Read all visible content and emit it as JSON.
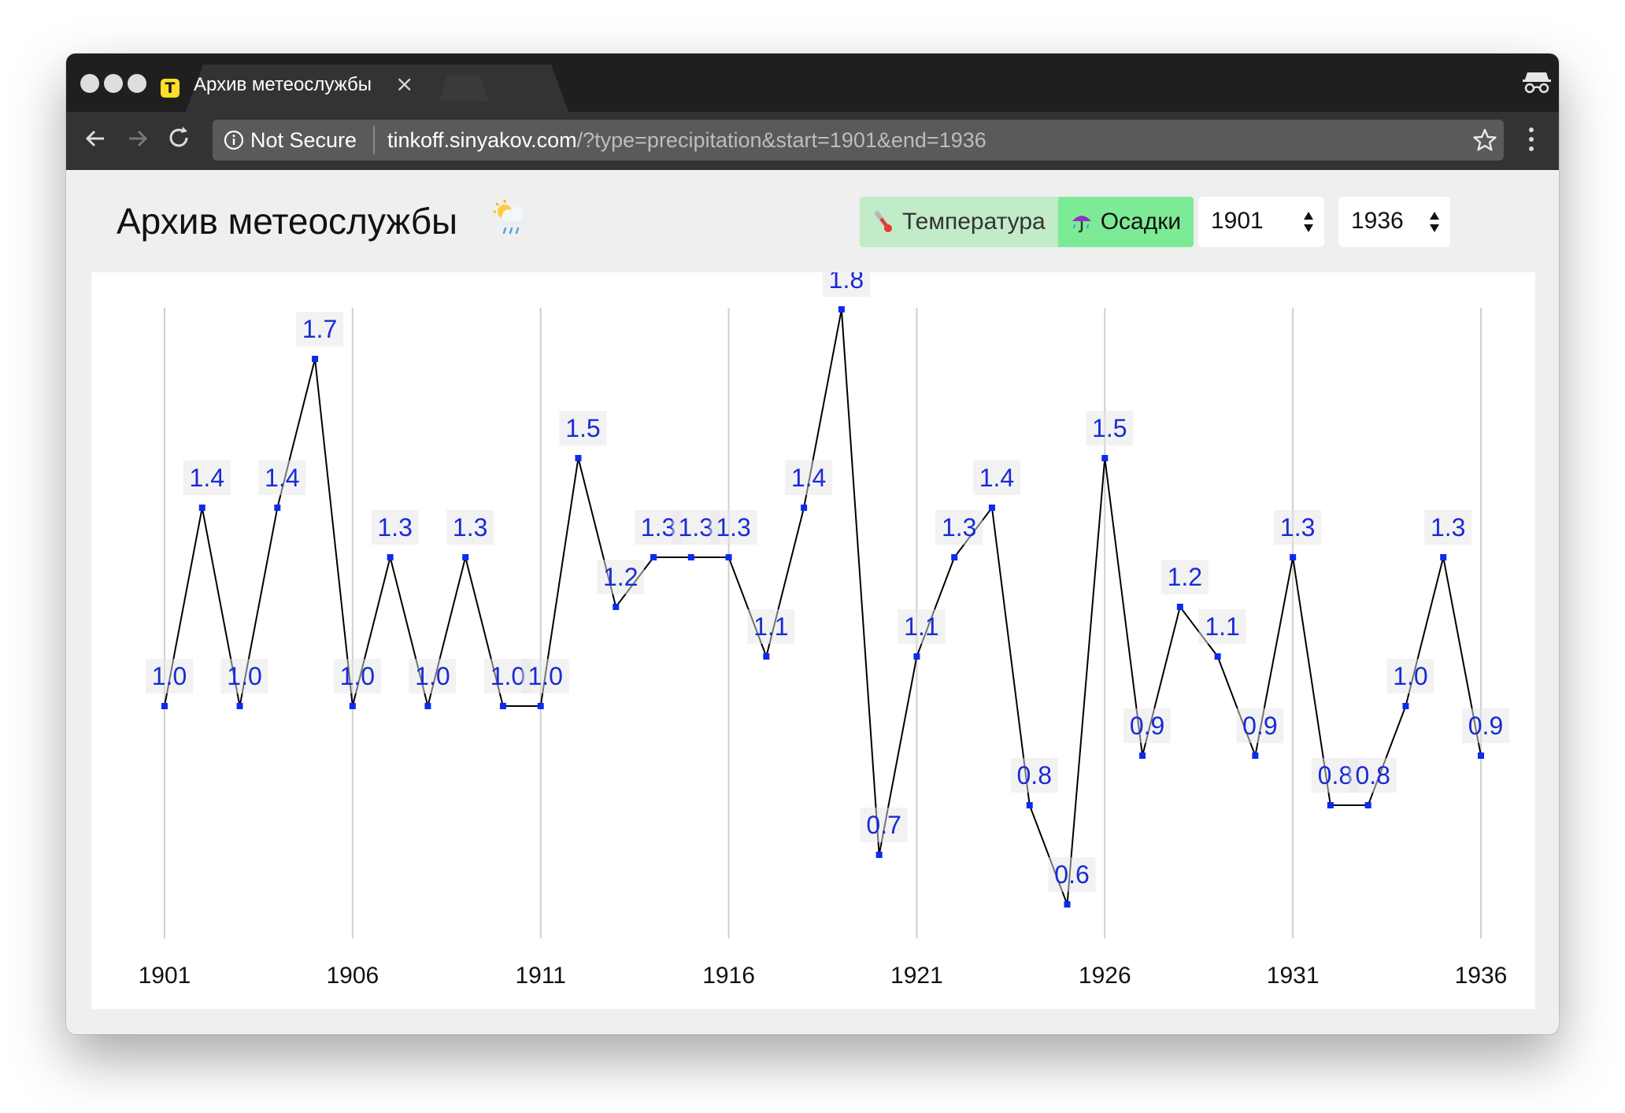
{
  "browser": {
    "tab_title": "Архив метеослужбы",
    "not_secure_label": "Not Secure",
    "url_host": "tinkoff.sinyakov.com",
    "url_path": "/?type=precipitation&start=1901&end=1936"
  },
  "header": {
    "title": "Архив метеослужбы",
    "title_emoji": "cloud-rain-sun-icon",
    "toggles": [
      {
        "label": "Температура",
        "icon": "thermometer-icon",
        "active": false
      },
      {
        "label": "Осадки",
        "icon": "umbrella-icon",
        "active": true
      }
    ],
    "start_year": "1901",
    "end_year": "1936"
  },
  "colors": {
    "active_toggle": "#7dea95",
    "inactive_toggle": "#c2ebc8",
    "point": "#0b2bf0",
    "label": "#1a2bd6",
    "line": "#000000"
  },
  "chart_data": {
    "type": "line",
    "x": [
      1901,
      1902,
      1903,
      1904,
      1905,
      1906,
      1907,
      1908,
      1909,
      1910,
      1911,
      1912,
      1913,
      1914,
      1915,
      1916,
      1917,
      1918,
      1919,
      1920,
      1921,
      1922,
      1923,
      1924,
      1925,
      1926,
      1927,
      1928,
      1929,
      1930,
      1931,
      1932,
      1933,
      1934,
      1935,
      1936
    ],
    "values": [
      1.0,
      1.4,
      1.0,
      1.4,
      1.7,
      1.0,
      1.3,
      1.0,
      1.3,
      1.0,
      1.0,
      1.5,
      1.2,
      1.3,
      1.3,
      1.3,
      1.1,
      1.4,
      1.8,
      0.7,
      1.1,
      1.3,
      1.4,
      0.8,
      0.6,
      1.5,
      0.9,
      1.2,
      1.1,
      0.9,
      1.3,
      0.8,
      0.8,
      1.0,
      1.3,
      0.9
    ],
    "data_labels": [
      "1.0",
      "1.4",
      "1.0",
      "1.4",
      "1.7",
      "1.0",
      "1.3",
      "1.0",
      "1.3",
      "1.0",
      "1.0",
      "1.5",
      "1.2",
      "1.3",
      "1.3",
      "1.3",
      "1.1",
      "1.4",
      "1.8",
      "0.7",
      "1.1",
      "1.3",
      "1.4",
      "0.8",
      "0.6",
      "1.5",
      "0.9",
      "1.2",
      "1.1",
      "0.9",
      "1.3",
      "0.8",
      "0.8",
      "1.0",
      "1.3",
      "0.9"
    ],
    "x_ticks": [
      "1901",
      "1906",
      "1911",
      "1916",
      "1921",
      "1926",
      "1931",
      "1936"
    ],
    "xlim": [
      1901,
      1936
    ],
    "ylim": [
      0.6,
      1.8
    ],
    "grid": "vertical",
    "legend": "none"
  }
}
